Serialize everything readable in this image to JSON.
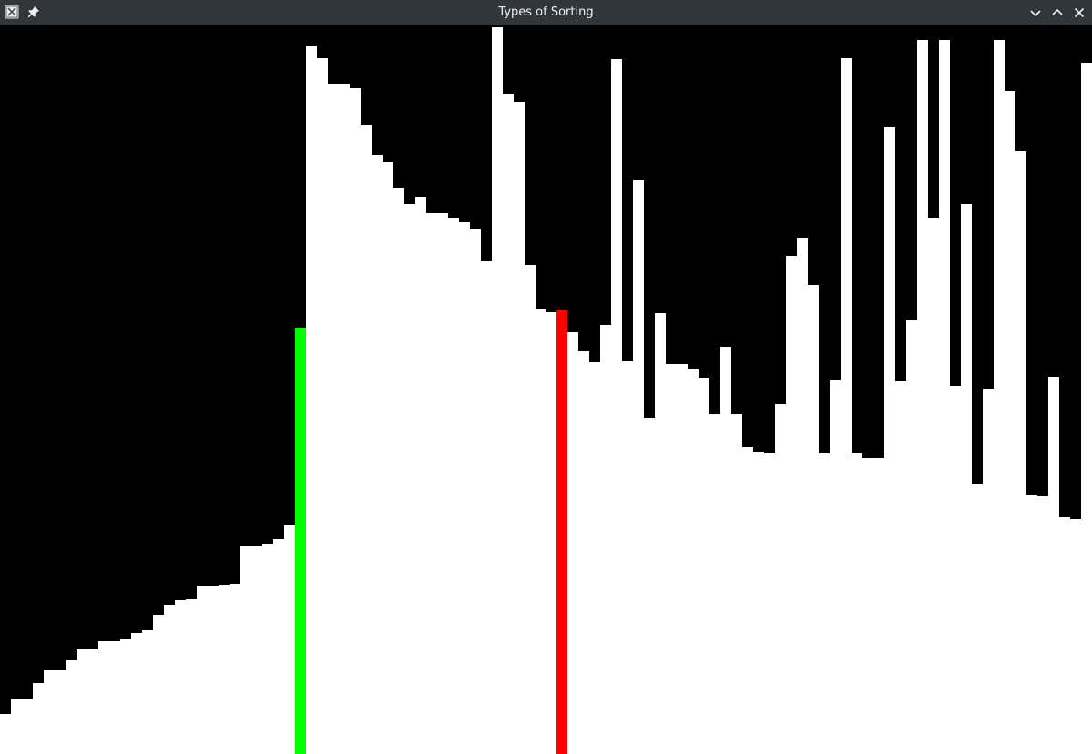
{
  "window": {
    "title": "Types of Sorting",
    "title_bar_color": "#31363b",
    "title_text_color": "#eff0f1",
    "icons": {
      "app": "app-icon",
      "pin": "pin-icon",
      "minimize": "chevron-down-icon",
      "maximize": "chevron-up-icon",
      "close": "close-icon"
    }
  },
  "visualization": {
    "background_color": "#000000",
    "bar_color": "#ffffff",
    "compare_color": "#00ff00",
    "swap_color": "#ff0000",
    "highlight_green_index": 27,
    "highlight_red_index": 51,
    "max_value": 800,
    "values": [
      44,
      60,
      60,
      78,
      92,
      92,
      103,
      115,
      115,
      124,
      124,
      126,
      133,
      136,
      153,
      164,
      169,
      170,
      184,
      184,
      186,
      187,
      228,
      228,
      231,
      236,
      252,
      468,
      778,
      764,
      736,
      736,
      731,
      691,
      658,
      650,
      622,
      604,
      612,
      594,
      594,
      589,
      584,
      576,
      541,
      798,
      725,
      716,
      537,
      489,
      485,
      488,
      463,
      443,
      430,
      471,
      763,
      432,
      630,
      369,
      484,
      428,
      428,
      423,
      413,
      373,
      447,
      373,
      337,
      332,
      330,
      384,
      547,
      567,
      515,
      330,
      411,
      764,
      330,
      325,
      325,
      688,
      410,
      477,
      784,
      589,
      784,
      404,
      604,
      296,
      401,
      784,
      728,
      662,
      284,
      283,
      414,
      260,
      258,
      759
    ],
    "notes": "Each value is a bar height in the same units as max_value"
  }
}
